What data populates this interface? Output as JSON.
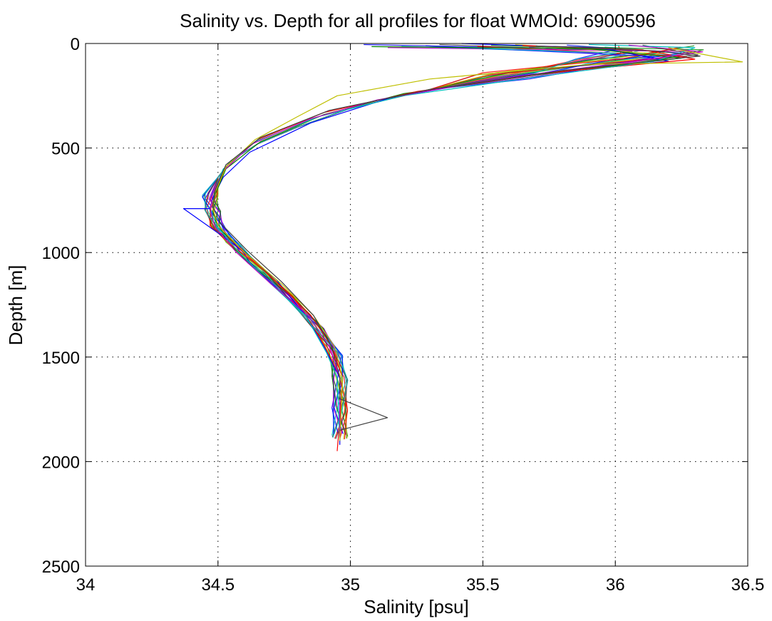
{
  "chart_data": {
    "type": "line",
    "title": "Salinity vs. Depth for all profiles for float WMOId: 6900596",
    "xlabel": "Salinity [psu]",
    "ylabel": "Depth [m]",
    "xlim": [
      34,
      36.5
    ],
    "ylim": [
      0,
      2500
    ],
    "y_reversed": true,
    "grid": true,
    "x_ticks": [
      34,
      34.5,
      35,
      35.5,
      36,
      36.5
    ],
    "x_tick_labels": [
      "34",
      "34.5",
      "35",
      "35.5",
      "36",
      "36.5"
    ],
    "y_ticks": [
      0,
      500,
      1000,
      1500,
      2000,
      2500
    ],
    "y_tick_labels": [
      "0",
      "500",
      "1000",
      "1500",
      "2000",
      "2500"
    ],
    "series_colors": [
      "#0000ff",
      "#008000",
      "#ff0000",
      "#00bfbf",
      "#bf00bf",
      "#bfbf00",
      "#404040"
    ],
    "series": [
      {
        "color": "#0000ff",
        "x": [
          35.42,
          35.95,
          36.2,
          35.6,
          35.15,
          34.85,
          34.62,
          34.52,
          34.48,
          34.47,
          34.37,
          34.56,
          34.72,
          34.83,
          34.9,
          34.96,
          34.96,
          34.96
        ],
        "y": [
          0,
          22,
          85,
          160,
          260,
          380,
          520,
          640,
          740,
          790,
          790,
          960,
          1130,
          1300,
          1450,
          1600,
          1780,
          1920
        ]
      },
      {
        "color": "#008000",
        "x": [
          35.08,
          35.9,
          36.25,
          35.7,
          35.2,
          34.9,
          34.66,
          34.53,
          34.49,
          34.48,
          34.5,
          34.6,
          34.73,
          34.85,
          34.93,
          34.97,
          34.96
        ],
        "y": [
          15,
          25,
          70,
          150,
          240,
          340,
          470,
          600,
          720,
          800,
          880,
          1000,
          1150,
          1300,
          1450,
          1600,
          1900
        ]
      },
      {
        "color": "#ff0000",
        "x": [
          35.65,
          36.1,
          36.3,
          35.75,
          35.25,
          34.9,
          34.65,
          34.53,
          34.49,
          34.48,
          34.5,
          34.59,
          34.72,
          34.85,
          34.93,
          34.97,
          34.96,
          34.95
        ],
        "y": [
          10,
          30,
          75,
          140,
          230,
          330,
          460,
          590,
          710,
          790,
          870,
          990,
          1140,
          1300,
          1450,
          1600,
          1800,
          1950
        ]
      },
      {
        "color": "#00bfbf",
        "x": [
          35.9,
          36.3,
          36.15,
          35.7,
          35.2,
          34.88,
          34.64,
          34.52,
          34.48,
          34.47,
          34.5,
          34.58,
          34.7,
          34.83,
          34.91,
          34.95,
          34.96
        ],
        "y": [
          5,
          20,
          85,
          160,
          250,
          350,
          470,
          600,
          720,
          800,
          880,
          1000,
          1150,
          1300,
          1480,
          1600,
          1900
        ]
      },
      {
        "color": "#bf00bf",
        "x": [
          36.05,
          36.33,
          36.1,
          35.55,
          35.1,
          34.85,
          34.63,
          34.52,
          34.48,
          34.47,
          34.49,
          34.57,
          34.7,
          34.84,
          34.92,
          34.96,
          34.96
        ],
        "y": [
          8,
          40,
          80,
          170,
          270,
          360,
          480,
          610,
          720,
          800,
          880,
          1000,
          1150,
          1300,
          1450,
          1600,
          1880
        ]
      },
      {
        "color": "#bfbf00",
        "x": [
          36.2,
          36.48,
          35.9,
          35.3,
          34.95,
          34.8,
          34.64,
          34.53,
          34.49,
          34.48,
          34.5,
          34.6,
          34.74,
          34.86,
          34.94,
          34.97,
          34.96
        ],
        "y": [
          20,
          88,
          100,
          170,
          250,
          350,
          460,
          590,
          710,
          790,
          870,
          1000,
          1150,
          1300,
          1450,
          1600,
          1900
        ]
      },
      {
        "color": "#404040",
        "x": [
          35.7,
          36.15,
          36.32,
          35.8,
          35.3,
          34.92,
          34.66,
          34.53,
          34.49,
          34.48,
          34.51,
          34.61,
          34.74,
          34.86,
          34.93,
          34.96,
          34.96,
          35.14,
          34.96
        ],
        "y": [
          12,
          35,
          60,
          130,
          220,
          320,
          450,
          580,
          700,
          780,
          860,
          990,
          1140,
          1300,
          1450,
          1600,
          1700,
          1790,
          1850
        ]
      }
    ]
  }
}
